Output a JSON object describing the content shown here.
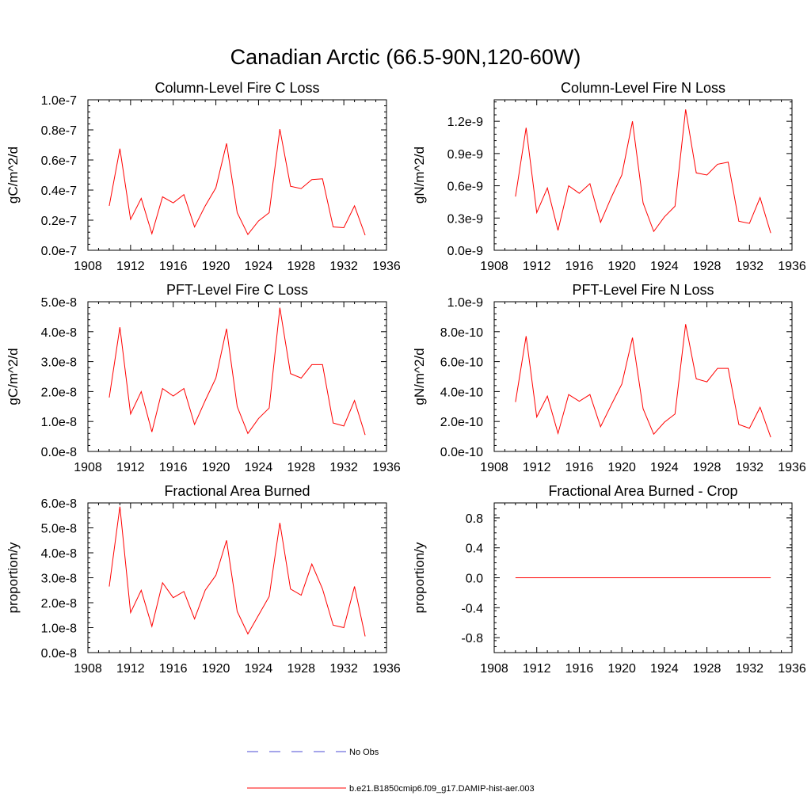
{
  "figure": {
    "title": "Canadian Arctic (66.5-90N,120-60W)"
  },
  "legend": {
    "items": [
      {
        "label": "No Obs",
        "color": "#4b4bd4",
        "style": "dashed"
      },
      {
        "label": "b.e21.B1850cmip6.f09_g17.DAMIP-hist-aer.003",
        "color": "#ff0000",
        "style": "solid"
      }
    ]
  },
  "chart_data": [
    {
      "type": "line",
      "title": "Column-Level Fire C Loss",
      "ylabel": "gC/m^2/d",
      "xlabel": "",
      "xlim": [
        1908,
        1936
      ],
      "xticks": [
        1908,
        1912,
        1916,
        1920,
        1924,
        1928,
        1932,
        1936
      ],
      "ylim": [
        0,
        1e-07
      ],
      "yticks": [
        0,
        2e-08,
        4e-08,
        6e-08,
        8e-08,
        1e-07
      ],
      "ytick_labels": [
        "0.0e-7",
        "0.2e-7",
        "0.4e-7",
        "0.6e-7",
        "0.8e-7",
        "1.0e-7"
      ],
      "color": "#ff0000",
      "x": [
        1910,
        1911,
        1912,
        1913,
        1914,
        1915,
        1916,
        1917,
        1918,
        1919,
        1920,
        1921,
        1922,
        1923,
        1924,
        1925,
        1926,
        1927,
        1928,
        1929,
        1930,
        1931,
        1932,
        1933,
        1934
      ],
      "y": [
        2.95e-08,
        6.75e-08,
        2.05e-08,
        3.45e-08,
        1.1e-08,
        3.55e-08,
        3.15e-08,
        3.7e-08,
        1.55e-08,
        2.95e-08,
        4.15e-08,
        7.1e-08,
        2.5e-08,
        1.05e-08,
        1.95e-08,
        2.5e-08,
        8.05e-08,
        4.25e-08,
        4.1e-08,
        4.7e-08,
        4.75e-08,
        1.55e-08,
        1.5e-08,
        2.95e-08,
        1e-08
      ]
    },
    {
      "type": "line",
      "title": "Column-Level Fire N Loss",
      "ylabel": "gN/m^2/d",
      "xlabel": "",
      "xlim": [
        1908,
        1936
      ],
      "xticks": [
        1908,
        1912,
        1916,
        1920,
        1924,
        1928,
        1932,
        1936
      ],
      "ylim": [
        0,
        1.4e-09
      ],
      "yticks": [
        0,
        3e-10,
        6e-10,
        9e-10,
        1.2e-09
      ],
      "ytick_labels": [
        "0.0e-9",
        "0.3e-9",
        "0.6e-9",
        "0.9e-9",
        "1.2e-9"
      ],
      "color": "#ff0000",
      "x": [
        1910,
        1911,
        1912,
        1913,
        1914,
        1915,
        1916,
        1917,
        1918,
        1919,
        1920,
        1921,
        1922,
        1923,
        1924,
        1925,
        1926,
        1927,
        1928,
        1929,
        1930,
        1931,
        1932,
        1933,
        1934
      ],
      "y": [
        5e-10,
        1.14e-09,
        3.5e-10,
        5.8e-10,
        1.85e-10,
        6e-10,
        5.3e-10,
        6.2e-10,
        2.6e-10,
        4.9e-10,
        7e-10,
        1.2e-09,
        4.4e-10,
        1.75e-10,
        3.1e-10,
        4.1e-10,
        1.31e-09,
        7.2e-10,
        7e-10,
        8e-10,
        8.2e-10,
        2.7e-10,
        2.5e-10,
        4.9e-10,
        1.6e-10
      ]
    },
    {
      "type": "line",
      "title": "PFT-Level Fire C Loss",
      "ylabel": "gC/m^2/d",
      "xlabel": "",
      "xlim": [
        1908,
        1936
      ],
      "xticks": [
        1908,
        1912,
        1916,
        1920,
        1924,
        1928,
        1932,
        1936
      ],
      "ylim": [
        0,
        5e-08
      ],
      "yticks": [
        0,
        1e-08,
        2e-08,
        3e-08,
        4e-08,
        5e-08
      ],
      "ytick_labels": [
        "0.0e-8",
        "1.0e-8",
        "2.0e-8",
        "3.0e-8",
        "4.0e-8",
        "5.0e-8"
      ],
      "color": "#ff0000",
      "x": [
        1910,
        1911,
        1912,
        1913,
        1914,
        1915,
        1916,
        1917,
        1918,
        1919,
        1920,
        1921,
        1922,
        1923,
        1924,
        1925,
        1926,
        1927,
        1928,
        1929,
        1930,
        1931,
        1932,
        1933,
        1934
      ],
      "y": [
        1.8e-08,
        4.15e-08,
        1.25e-08,
        2e-08,
        6.5e-09,
        2.1e-08,
        1.85e-08,
        2.1e-08,
        9e-09,
        1.7e-08,
        2.45e-08,
        4.1e-08,
        1.5e-08,
        6e-09,
        1.1e-08,
        1.45e-08,
        4.8e-08,
        2.6e-08,
        2.45e-08,
        2.9e-08,
        2.9e-08,
        9.5e-09,
        8.5e-09,
        1.7e-08,
        5.5e-09
      ]
    },
    {
      "type": "line",
      "title": "PFT-Level Fire N Loss",
      "ylabel": "gN/m^2/d",
      "xlabel": "",
      "xlim": [
        1908,
        1936
      ],
      "xticks": [
        1908,
        1912,
        1916,
        1920,
        1924,
        1928,
        1932,
        1936
      ],
      "ylim": [
        0,
        1e-09
      ],
      "yticks": [
        0,
        2e-10,
        4e-10,
        6e-10,
        8e-10,
        1e-09
      ],
      "ytick_labels": [
        "0.0e-10",
        "2.0e-10",
        "4.0e-10",
        "6.0e-10",
        "8.0e-10",
        "1.0e-9"
      ],
      "color": "#ff0000",
      "x": [
        1910,
        1911,
        1912,
        1913,
        1914,
        1915,
        1916,
        1917,
        1918,
        1919,
        1920,
        1921,
        1922,
        1923,
        1924,
        1925,
        1926,
        1927,
        1928,
        1929,
        1930,
        1931,
        1932,
        1933,
        1934
      ],
      "y": [
        3.3e-10,
        7.7e-10,
        2.3e-10,
        3.7e-10,
        1.2e-10,
        3.8e-10,
        3.35e-10,
        3.8e-10,
        1.65e-10,
        3.1e-10,
        4.5e-10,
        7.6e-10,
        2.85e-10,
        1.15e-10,
        1.95e-10,
        2.5e-10,
        8.5e-10,
        4.85e-10,
        4.65e-10,
        5.55e-10,
        5.55e-10,
        1.8e-10,
        1.55e-10,
        2.95e-10,
        9.5e-11
      ]
    },
    {
      "type": "line",
      "title": "Fractional Area Burned",
      "ylabel": "proportion/y",
      "xlabel": "",
      "xlim": [
        1908,
        1936
      ],
      "xticks": [
        1908,
        1912,
        1916,
        1920,
        1924,
        1928,
        1932,
        1936
      ],
      "ylim": [
        0,
        6e-08
      ],
      "yticks": [
        0,
        1e-08,
        2e-08,
        3e-08,
        4e-08,
        5e-08,
        6e-08
      ],
      "ytick_labels": [
        "0.0e-8",
        "1.0e-8",
        "2.0e-8",
        "3.0e-8",
        "4.0e-8",
        "5.0e-8",
        "6.0e-8"
      ],
      "color": "#ff0000",
      "x": [
        1910,
        1911,
        1912,
        1913,
        1914,
        1915,
        1916,
        1917,
        1918,
        1919,
        1920,
        1921,
        1922,
        1923,
        1924,
        1925,
        1926,
        1927,
        1928,
        1929,
        1930,
        1931,
        1932,
        1933,
        1934
      ],
      "y": [
        2.65e-08,
        5.85e-08,
        1.6e-08,
        2.5e-08,
        1.05e-08,
        2.8e-08,
        2.2e-08,
        2.45e-08,
        1.35e-08,
        2.5e-08,
        3.1e-08,
        4.5e-08,
        1.65e-08,
        7.5e-09,
        1.5e-08,
        2.25e-08,
        5.2e-08,
        2.55e-08,
        2.3e-08,
        3.55e-08,
        2.55e-08,
        1.1e-08,
        1e-08,
        2.65e-08,
        6.5e-09
      ]
    },
    {
      "type": "line",
      "title": "Fractional Area Burned - Crop",
      "ylabel": "proportion/y",
      "xlabel": "",
      "xlim": [
        1908,
        1936
      ],
      "xticks": [
        1908,
        1912,
        1916,
        1920,
        1924,
        1928,
        1932,
        1936
      ],
      "ylim": [
        -1.0,
        1.0
      ],
      "yticks": [
        -0.8,
        -0.4,
        0,
        0.4,
        0.8
      ],
      "ytick_labels": [
        "-0.8",
        "-0.4",
        "0.0",
        "0.4",
        "0.8"
      ],
      "color": "#ff0000",
      "x": [
        1910,
        1911,
        1912,
        1913,
        1914,
        1915,
        1916,
        1917,
        1918,
        1919,
        1920,
        1921,
        1922,
        1923,
        1924,
        1925,
        1926,
        1927,
        1928,
        1929,
        1930,
        1931,
        1932,
        1933,
        1934
      ],
      "y": [
        0,
        0,
        0,
        0,
        0,
        0,
        0,
        0,
        0,
        0,
        0,
        0,
        0,
        0,
        0,
        0,
        0,
        0,
        0,
        0,
        0,
        0,
        0,
        0,
        0
      ]
    }
  ]
}
